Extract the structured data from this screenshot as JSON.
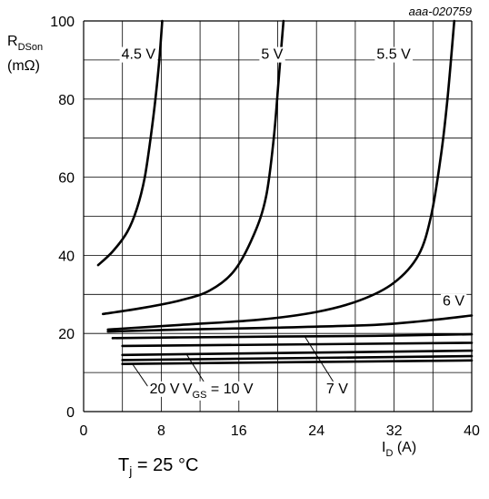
{
  "chart_data": {
    "type": "line",
    "figure_id": "aaa-020759",
    "ylabel_main": "R",
    "ylabel_sub": "DSon",
    "ylabel_unit": "(mΩ)",
    "xlabel_main": "I",
    "xlabel_sub": "D",
    "xlabel_unit": " (A)",
    "xlim": [
      0,
      40
    ],
    "ylim": [
      0,
      100
    ],
    "x_ticks": [
      "0",
      "8",
      "16",
      "24",
      "32",
      "40"
    ],
    "y_ticks": [
      "0",
      "20",
      "40",
      "60",
      "80",
      "100"
    ],
    "grid": true,
    "series": [
      {
        "name": "4.5 V",
        "x": [
          1.5,
          3,
          4.5,
          5.5,
          6.3,
          6.9,
          7.4,
          7.8,
          8.1
        ],
        "y": [
          37.5,
          41,
          46,
          52,
          60,
          70,
          80,
          90,
          100
        ]
      },
      {
        "name": "5 V",
        "x": [
          2,
          6,
          10,
          13,
          15.5,
          17.5,
          18.8,
          19.6,
          20.1,
          20.6
        ],
        "y": [
          25,
          26.5,
          28.5,
          31,
          36,
          45,
          55,
          70,
          85,
          100
        ]
      },
      {
        "name": "5.5 V",
        "x": [
          2.5,
          10,
          18,
          24,
          28.5,
          32,
          34.5,
          35.8,
          36.8,
          37.5,
          38.2
        ],
        "y": [
          21,
          22.2,
          23.5,
          25.5,
          28.5,
          33,
          40,
          50,
          65,
          80,
          100
        ]
      },
      {
        "name": "6 V",
        "x": [
          2.5,
          10,
          20,
          30,
          35,
          40
        ],
        "y": [
          20.5,
          21,
          21.5,
          22.2,
          23.2,
          24.6
        ]
      },
      {
        "name": "7 V",
        "x": [
          3,
          10,
          20,
          30,
          40
        ],
        "y": [
          18.8,
          19,
          19.2,
          19.4,
          19.8
        ]
      },
      {
        "name": "",
        "x": [
          4,
          40
        ],
        "y": [
          16.8,
          17.6
        ]
      },
      {
        "name": "VGS = 10 V",
        "x": [
          4,
          40
        ],
        "y": [
          14.5,
          15.6
        ]
      },
      {
        "name": "",
        "x": [
          4,
          40
        ],
        "y": [
          13.2,
          14.2
        ]
      },
      {
        "name": "20 V",
        "x": [
          4,
          40
        ],
        "y": [
          12.2,
          13.1
        ]
      }
    ],
    "annotations": {
      "curve_labels": [
        {
          "text": "4.5 V",
          "x": 3.9,
          "y": 90.3
        },
        {
          "text": "5 V",
          "x": 18.3,
          "y": 90.3
        },
        {
          "text": "5.5 V",
          "x": 30.2,
          "y": 90.3
        },
        {
          "text": "6 V",
          "x": 37.0,
          "y": 27.1
        }
      ],
      "leader_labels": [
        {
          "text": "20 V",
          "x": 6.8,
          "y": 4.7
        },
        {
          "text_main": "V",
          "text_sub": "GS",
          "text_rest": " = 10 V",
          "x": 10.2,
          "y": 4.7
        },
        {
          "text": "7 V",
          "x": 25.0,
          "y": 4.7
        }
      ]
    }
  },
  "footnote": {
    "main": "T",
    "sub": "j",
    "rest": " = 25 °C"
  }
}
